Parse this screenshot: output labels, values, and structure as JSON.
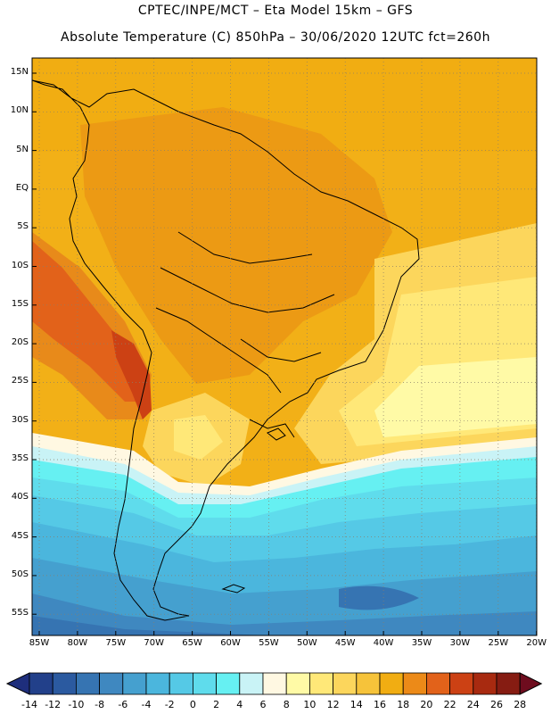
{
  "header": {
    "line1": "CPTEC/INPE/MCT –   Eta Model 15km – GFS",
    "line2": "Absolute Temperature (C) 850hPa – 30/06/2020 12UTC fct=260h"
  },
  "axes": {
    "lat_labels": [
      "15N",
      "10N",
      "5N",
      "EQ",
      "5S",
      "10S",
      "15S",
      "20S",
      "25S",
      "30S",
      "35S",
      "40S",
      "45S",
      "50S",
      "55S"
    ],
    "lon_labels": [
      "85W",
      "80W",
      "75W",
      "70W",
      "65W",
      "60W",
      "55W",
      "50W",
      "45W",
      "40W",
      "35W",
      "30W",
      "25W",
      "20W"
    ]
  },
  "colorbar": {
    "labels": [
      "-14",
      "-12",
      "-10",
      "-8",
      "-6",
      "-4",
      "-2",
      "0",
      "2",
      "4",
      "6",
      "8",
      "10",
      "12",
      "14",
      "16",
      "18",
      "20",
      "22",
      "24",
      "26",
      "28"
    ],
    "under_color": "#1e2e7c",
    "over_color": "#6e0c1e",
    "colors": [
      "#22408a",
      "#2b5aa0",
      "#3674b2",
      "#3f88c0",
      "#45a0cf",
      "#4bb6dd",
      "#55c9e6",
      "#5fdcec",
      "#66f0f2",
      "#c9f3f6",
      "#fff8e2",
      "#fffaa6",
      "#ffe878",
      "#fcd65c",
      "#f6c33a",
      "#f1ad12",
      "#ec8a18",
      "#e2621a",
      "#cc4114",
      "#a82a10",
      "#861c12"
    ]
  }
}
